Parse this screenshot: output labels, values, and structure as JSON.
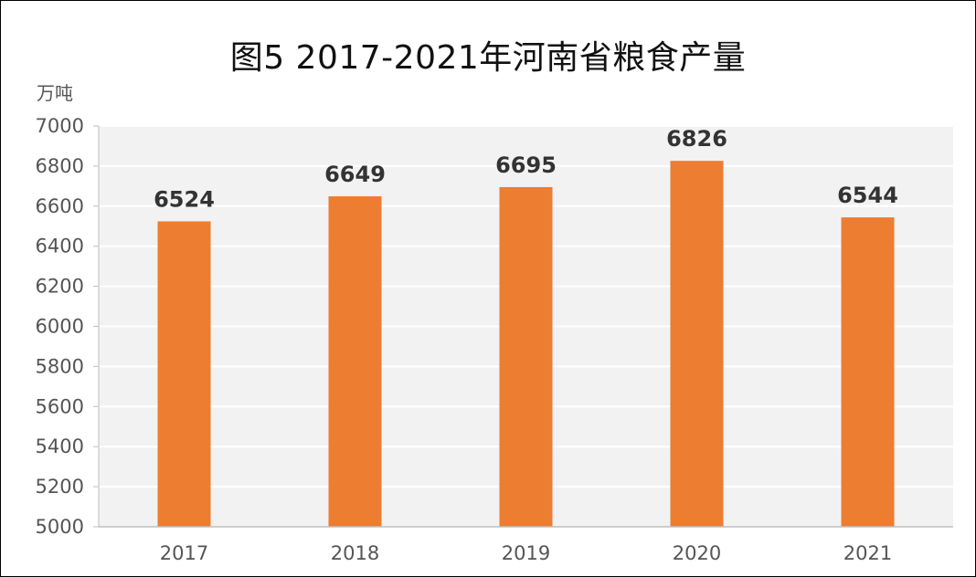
{
  "chart_data": {
    "type": "bar",
    "title": "图5   2017-2021年河南省粮食产量",
    "ylabel": "万吨",
    "xlabel": "",
    "categories": [
      "2017",
      "2018",
      "2019",
      "2020",
      "2021"
    ],
    "values": [
      6524,
      6649,
      6695,
      6826,
      6544
    ],
    "ylim": [
      5000,
      7000
    ],
    "yticks": [
      5000,
      5200,
      5400,
      5600,
      5800,
      6000,
      6200,
      6400,
      6600,
      6800,
      7000
    ],
    "grid": true,
    "bar_color": "#ED7D31",
    "plot_bg": "#F2F2F2"
  }
}
